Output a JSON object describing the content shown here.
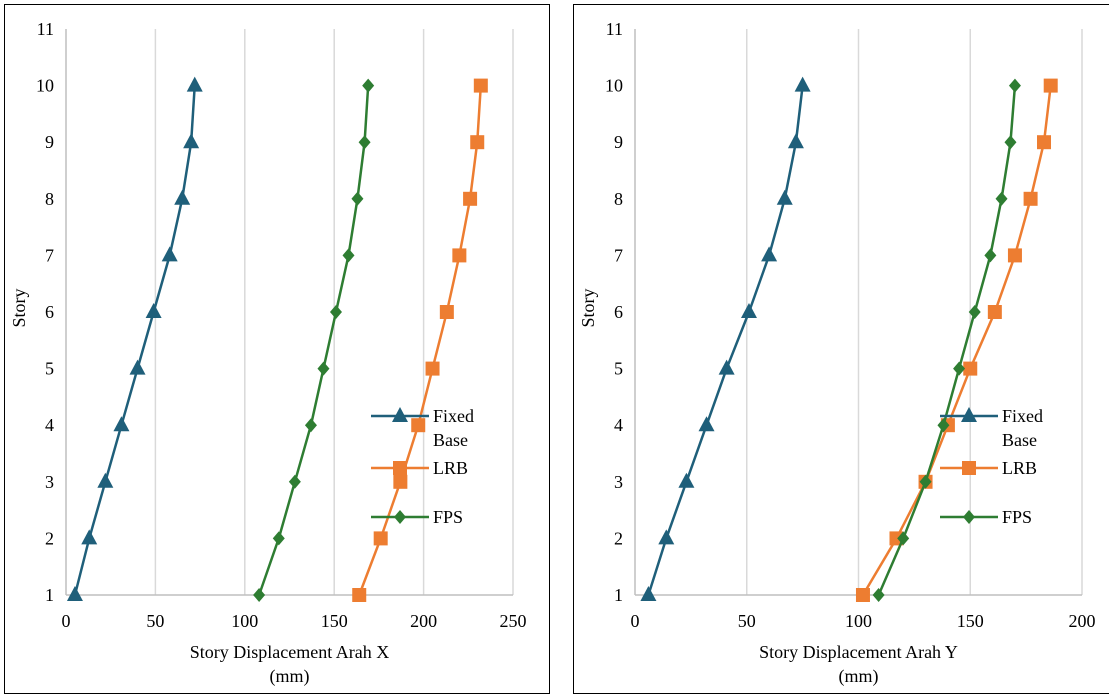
{
  "chart_data": [
    {
      "type": "line",
      "xlabel": "Story Displacement Arah X (mm)",
      "ylabel": "Story",
      "xlim": [
        0,
        250
      ],
      "ylim": [
        1,
        11
      ],
      "x_ticks": [
        0,
        50,
        100,
        150,
        200,
        250
      ],
      "y_ticks": [
        1,
        2,
        3,
        4,
        5,
        6,
        7,
        8,
        9,
        10,
        11
      ],
      "grid": "vertical",
      "legend_position": "right",
      "series": [
        {
          "name": "Fixed Base",
          "color": "#1f5f7a",
          "marker": "triangle",
          "points": [
            [
              5,
              1
            ],
            [
              13,
              2
            ],
            [
              22,
              3
            ],
            [
              31,
              4
            ],
            [
              40,
              5
            ],
            [
              49,
              6
            ],
            [
              58,
              7
            ],
            [
              65,
              8
            ],
            [
              70,
              9
            ],
            [
              72,
              10
            ]
          ]
        },
        {
          "name": "LRB",
          "color": "#ed7d31",
          "marker": "square",
          "points": [
            [
              164,
              1
            ],
            [
              176,
              2
            ],
            [
              187,
              3
            ],
            [
              197,
              4
            ],
            [
              205,
              5
            ],
            [
              213,
              6
            ],
            [
              220,
              7
            ],
            [
              226,
              8
            ],
            [
              230,
              9
            ],
            [
              232,
              10
            ]
          ]
        },
        {
          "name": "FPS",
          "color": "#2e7d32",
          "marker": "diamond",
          "points": [
            [
              108,
              1
            ],
            [
              119,
              2
            ],
            [
              128,
              3
            ],
            [
              137,
              4
            ],
            [
              144,
              5
            ],
            [
              151,
              6
            ],
            [
              158,
              7
            ],
            [
              163,
              8
            ],
            [
              167,
              9
            ],
            [
              169,
              10
            ]
          ]
        }
      ]
    },
    {
      "type": "line",
      "xlabel": "Story Displacement Arah Y (mm)",
      "ylabel": "Story",
      "xlim": [
        0,
        200
      ],
      "ylim": [
        1,
        11
      ],
      "x_ticks": [
        0,
        50,
        100,
        150,
        200
      ],
      "y_ticks": [
        1,
        2,
        3,
        4,
        5,
        6,
        7,
        8,
        9,
        10,
        11
      ],
      "grid": "vertical",
      "legend_position": "right",
      "series": [
        {
          "name": "Fixed Base",
          "color": "#1f5f7a",
          "marker": "triangle",
          "points": [
            [
              6,
              1
            ],
            [
              14,
              2
            ],
            [
              23,
              3
            ],
            [
              32,
              4
            ],
            [
              41,
              5
            ],
            [
              51,
              6
            ],
            [
              60,
              7
            ],
            [
              67,
              8
            ],
            [
              72,
              9
            ],
            [
              75,
              10
            ]
          ]
        },
        {
          "name": "LRB",
          "color": "#ed7d31",
          "marker": "square",
          "points": [
            [
              102,
              1
            ],
            [
              117,
              2
            ],
            [
              130,
              3
            ],
            [
              140,
              4
            ],
            [
              150,
              5
            ],
            [
              161,
              6
            ],
            [
              170,
              7
            ],
            [
              177,
              8
            ],
            [
              183,
              9
            ],
            [
              186,
              10
            ]
          ]
        },
        {
          "name": "FPS",
          "color": "#2e7d32",
          "marker": "diamond",
          "points": [
            [
              109,
              1
            ],
            [
              120,
              2
            ],
            [
              130,
              3
            ],
            [
              138,
              4
            ],
            [
              145,
              5
            ],
            [
              152,
              6
            ],
            [
              159,
              7
            ],
            [
              164,
              8
            ],
            [
              168,
              9
            ],
            [
              170,
              10
            ]
          ]
        }
      ]
    }
  ],
  "legend_text": {
    "fixed_line1": "Fixed",
    "fixed_line2": "Base",
    "lrb": "LRB",
    "fps": "FPS"
  },
  "axis_titles": {
    "left_x_line1": "Story Displacement Arah X",
    "right_x_line1": "Story Displacement Arah Y",
    "x_line2": "(mm)",
    "y": "Story"
  }
}
